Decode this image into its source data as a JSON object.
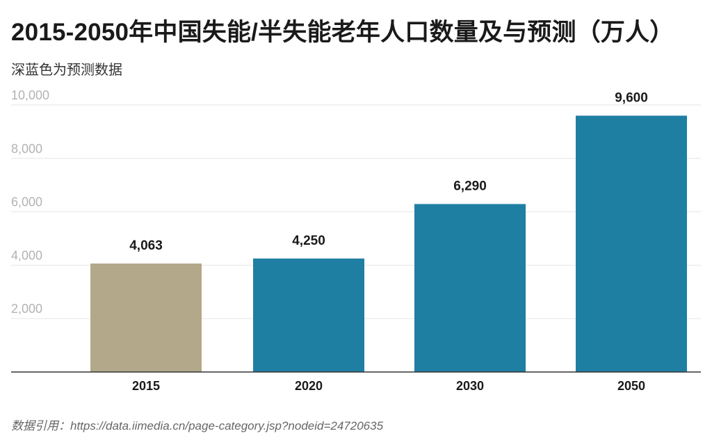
{
  "chart_data": {
    "type": "bar",
    "title": "2015-2050年中国失能/半失能老年人口数量及与预测（万人）",
    "subtitle": "深蓝色为预测数据",
    "source": "数据引用：https://data.iimedia.cn/page-category.jsp?nodeid=24720635",
    "categories": [
      "2015",
      "2020",
      "2030",
      "2050"
    ],
    "values": [
      4063,
      4250,
      6290,
      9600
    ],
    "value_labels": [
      "4,063",
      "4,250",
      "6,290",
      "9,600"
    ],
    "bar_colors": [
      "#b3a88a",
      "#1e7fa3",
      "#1e7fa3",
      "#1e7fa3"
    ],
    "ylim": [
      0,
      10000
    ],
    "yticks": [
      2000,
      4000,
      6000,
      8000,
      10000
    ],
    "ytick_labels": [
      "2,000",
      "4,000",
      "6,000",
      "8,000",
      "10,000"
    ],
    "grid": true,
    "gridline_color": "#e6e6e6",
    "baseline_color": "#333333"
  }
}
